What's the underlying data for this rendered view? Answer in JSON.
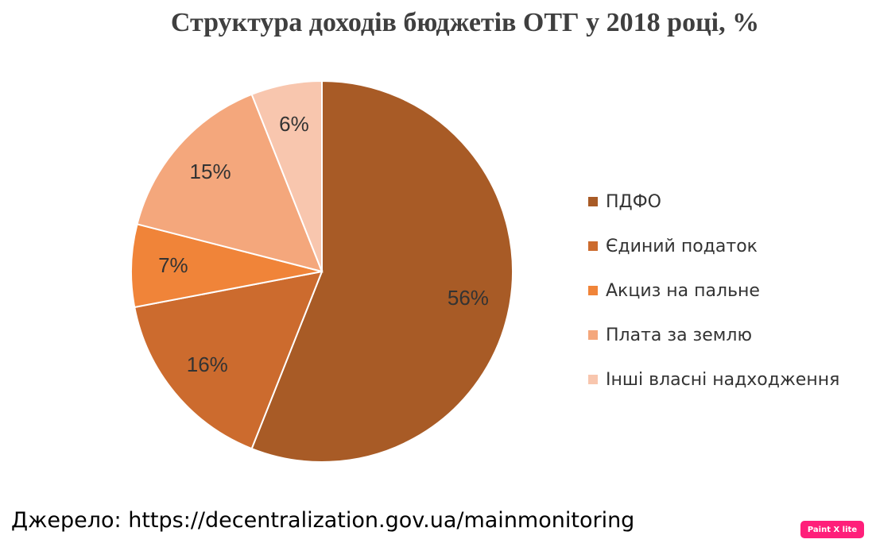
{
  "chart_data": {
    "type": "pie",
    "title": "Структура доходів бюджетів ОТГ у 2018 році, %",
    "categories": [
      "ПДФО",
      "Єдиний податок",
      "Акциз на пальне",
      "Плата за землю",
      "Інші власні надходження"
    ],
    "values": [
      56,
      16,
      7,
      15,
      6
    ],
    "labels": [
      "56%",
      "16%",
      "7%",
      "15%",
      "6%"
    ],
    "colors": [
      "#a85b26",
      "#cc6b2e",
      "#f08439",
      "#f4a77c",
      "#f8c6ae"
    ],
    "legend_position": "right"
  },
  "source_note": "Джерело: https://decentralization.gov.ua/mainmonitoring",
  "watermark": "Paint X lite"
}
